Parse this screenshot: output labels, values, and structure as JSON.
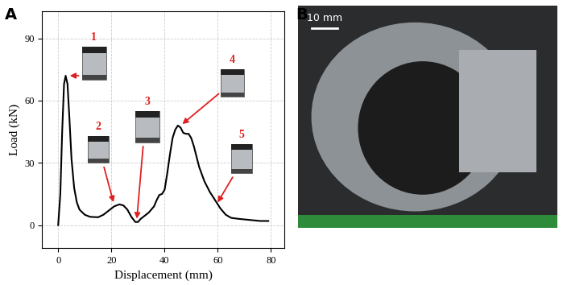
{
  "chart_data": {
    "type": "line",
    "xlabel": "Displacement (mm)",
    "ylabel": "Load (kN)",
    "x": [
      0,
      0.8,
      1.5,
      2.2,
      2.8,
      3.5,
      4.2,
      5,
      6,
      7,
      8,
      10,
      12,
      15,
      17,
      19,
      21,
      23,
      24.5,
      26,
      27.5,
      29,
      30,
      31,
      32,
      34,
      36,
      37,
      38,
      39,
      40,
      41,
      42,
      43,
      44,
      45,
      46,
      47,
      48,
      49,
      50,
      51,
      52,
      53,
      55,
      57,
      59,
      61,
      63,
      65,
      68,
      72,
      76,
      79
    ],
    "values": [
      0,
      15,
      45,
      68,
      72,
      68,
      52,
      32,
      18,
      11,
      7.5,
      5,
      4,
      3.8,
      5,
      7,
      9,
      10,
      9.5,
      7.5,
      4,
      1.5,
      1.5,
      3,
      4,
      6,
      9,
      12,
      14.5,
      15,
      17,
      25,
      34,
      42,
      46,
      48,
      47,
      44.5,
      44,
      44,
      42,
      38,
      33,
      28,
      21,
      16,
      12,
      8,
      5,
      3.5,
      3,
      2.5,
      2,
      2
    ],
    "color": "#000000",
    "xlim": [
      -6,
      85
    ],
    "ylim": [
      -11,
      103
    ],
    "xticks": [
      0,
      20,
      40,
      60,
      80
    ],
    "yticks": [
      0,
      30,
      60,
      90
    ],
    "grid": true,
    "annotations": [
      {
        "text": "1",
        "x": 3.5,
        "y": 72,
        "color": "#e02020"
      },
      {
        "text": "2",
        "x": 21,
        "y": 10,
        "color": "#e02020"
      },
      {
        "text": "3",
        "x": 29.5,
        "y": 2,
        "color": "#e02020"
      },
      {
        "text": "4",
        "x": 46,
        "y": 48,
        "color": "#e02020"
      },
      {
        "text": "5",
        "x": 59.5,
        "y": 10,
        "color": "#e02020"
      }
    ]
  },
  "panel_labels": [
    "A",
    "B"
  ],
  "photo": {
    "scale_bar": "10 mm"
  }
}
